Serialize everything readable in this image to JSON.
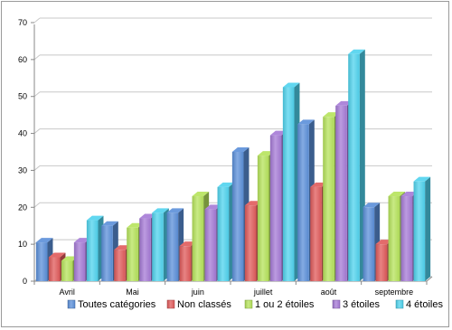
{
  "chart_data": {
    "type": "bar",
    "style": "3d-clustered-column",
    "title": "",
    "xlabel": "",
    "ylabel": "",
    "ylim": [
      0,
      70
    ],
    "yticks": [
      "0",
      "10",
      "20",
      "30",
      "40",
      "50",
      "60",
      "70"
    ],
    "grid": true,
    "legend_position": "bottom",
    "categories": [
      "Avril",
      "Mai",
      "juin",
      "juillet",
      "août",
      "septembre"
    ],
    "series": [
      {
        "name": "Toutes catégories",
        "color": "#5b8fd9",
        "values": [
          10.5,
          15,
          18.5,
          35,
          42.5,
          20
        ]
      },
      {
        "name": "Non classés",
        "color": "#e05a5a",
        "values": [
          6.5,
          8.5,
          9.5,
          20.5,
          25.5,
          10
        ]
      },
      {
        "name": "1 ou 2 étoiles",
        "color": "#b6e35b",
        "values": [
          5.5,
          14.5,
          23,
          34,
          44.5,
          23
        ]
      },
      {
        "name": "3 étoiles",
        "color": "#a57ad6",
        "values": [
          10.5,
          17,
          19.5,
          39.5,
          47.5,
          23
        ]
      },
      {
        "name": "4 étoiles",
        "color": "#4fd3ee",
        "values": [
          16.5,
          18.5,
          25.5,
          52.5,
          61.5,
          27
        ]
      }
    ]
  }
}
